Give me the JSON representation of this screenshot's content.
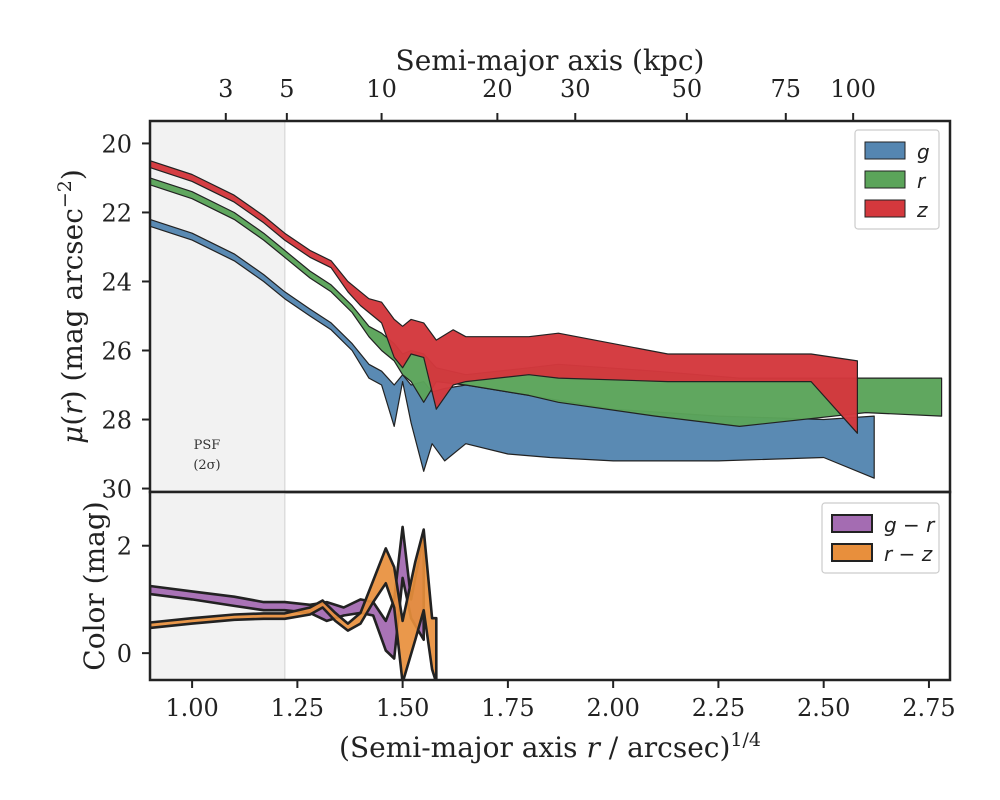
{
  "chart_data": [
    {
      "type": "area",
      "top_axis": {
        "label": "Semi-major axis (kpc)",
        "tick_labels": [
          "3",
          "5",
          "10",
          "20",
          "30",
          "50",
          "75",
          "100"
        ],
        "tick_r14": [
          1.08,
          1.225,
          1.45,
          1.725,
          1.91,
          2.175,
          2.41,
          2.57
        ]
      },
      "ylabel": "μ(r) (mag arcsec⁻²)",
      "ylim": [
        30.1,
        19.35
      ],
      "xlim": [
        0.9,
        2.8
      ],
      "yticks": [
        20,
        22,
        24,
        26,
        28,
        30
      ],
      "psf_label": [
        "PSF",
        "(2σ)"
      ],
      "psf_r14": 1.22,
      "legend_position": "upper right",
      "series": [
        {
          "name": "g",
          "color": "#5586b1",
          "x": [
            0.9,
            1.0,
            1.1,
            1.17,
            1.22,
            1.28,
            1.33,
            1.38,
            1.42,
            1.45,
            1.48,
            1.5,
            1.52,
            1.55,
            1.57,
            1.6,
            1.65,
            1.75,
            1.85,
            2.0,
            2.25,
            2.5,
            2.62
          ],
          "y_low": [
            22.2,
            22.6,
            23.2,
            23.8,
            24.3,
            24.8,
            25.2,
            25.8,
            26.4,
            26.6,
            27.0,
            26.7,
            27.0,
            26.9,
            27.2,
            27.1,
            27.0,
            27.2,
            27.4,
            27.7,
            27.9,
            28.0,
            27.9
          ],
          "y_high": [
            22.4,
            22.8,
            23.4,
            24.0,
            24.5,
            25.0,
            25.4,
            26.0,
            26.8,
            27.0,
            28.2,
            26.9,
            28.1,
            29.5,
            28.7,
            29.2,
            28.7,
            29.0,
            29.1,
            29.2,
            29.2,
            29.1,
            29.7
          ]
        },
        {
          "name": "r",
          "color": "#5ba45a",
          "x": [
            0.9,
            1.0,
            1.1,
            1.17,
            1.22,
            1.28,
            1.33,
            1.38,
            1.42,
            1.45,
            1.48,
            1.5,
            1.52,
            1.55,
            1.58,
            1.65,
            1.8,
            1.87,
            2.1,
            2.3,
            2.6,
            2.78
          ],
          "y_low": [
            21.0,
            21.4,
            22.0,
            22.6,
            23.1,
            23.7,
            24.1,
            24.7,
            25.3,
            25.5,
            25.8,
            26.1,
            26.0,
            26.1,
            26.5,
            26.7,
            26.5,
            26.4,
            26.6,
            26.8,
            26.8,
            26.8
          ],
          "y_high": [
            21.2,
            21.6,
            22.2,
            22.8,
            23.3,
            23.9,
            24.3,
            24.9,
            25.6,
            26.0,
            26.3,
            26.7,
            26.9,
            27.5,
            26.9,
            27.0,
            27.3,
            27.5,
            27.9,
            28.2,
            27.8,
            27.9
          ]
        },
        {
          "name": "z",
          "color": "#d4383d",
          "x": [
            0.9,
            1.0,
            1.1,
            1.17,
            1.22,
            1.28,
            1.33,
            1.37,
            1.4,
            1.42,
            1.45,
            1.48,
            1.5,
            1.52,
            1.55,
            1.58,
            1.62,
            1.65,
            1.8,
            1.87,
            2.13,
            2.47,
            2.58
          ],
          "y_low": [
            20.5,
            20.9,
            21.5,
            22.1,
            22.6,
            23.1,
            23.4,
            24.0,
            24.3,
            24.5,
            24.6,
            25.1,
            25.3,
            25.1,
            25.2,
            25.7,
            25.4,
            25.6,
            25.6,
            25.5,
            26.1,
            26.1,
            26.3
          ],
          "y_high": [
            20.7,
            21.1,
            21.7,
            22.3,
            22.8,
            23.3,
            23.6,
            24.3,
            24.7,
            24.9,
            25.2,
            26.2,
            26.5,
            26.1,
            26.2,
            27.7,
            27.0,
            26.9,
            26.7,
            26.8,
            26.9,
            26.9,
            28.4
          ]
        }
      ]
    },
    {
      "type": "area",
      "xlabel": "(Semi-major axis r / arcsec)^1/4",
      "ylabel": "Color (mag)",
      "xlim": [
        0.9,
        2.8
      ],
      "ylim": [
        -0.5,
        3.0
      ],
      "yticks": [
        0,
        2
      ],
      "xticks": [
        1.0,
        1.25,
        1.5,
        1.75,
        2.0,
        2.25,
        2.5,
        2.75
      ],
      "xtick_labels": [
        "1.00",
        "1.25",
        "1.50",
        "1.75",
        "2.00",
        "2.25",
        "2.50",
        "2.75"
      ],
      "legend_position": "upper right",
      "series": [
        {
          "name": "g − r",
          "color": "#a46cb2",
          "x": [
            0.9,
            1.0,
            1.1,
            1.17,
            1.22,
            1.28,
            1.32,
            1.36,
            1.4,
            1.43,
            1.46,
            1.48,
            1.5,
            1.52,
            1.55
          ],
          "y_low": [
            1.1,
            1.0,
            0.88,
            0.8,
            0.8,
            0.75,
            0.6,
            0.7,
            0.75,
            0.7,
            0.05,
            -0.1,
            1.4,
            0.65,
            0.25
          ],
          "y_high": [
            1.25,
            1.15,
            1.05,
            0.95,
            0.95,
            0.9,
            0.95,
            0.85,
            1.0,
            0.95,
            0.6,
            1.0,
            2.35,
            1.0,
            2.2
          ]
        },
        {
          "name": "r − z",
          "color": "#e88f3c",
          "x": [
            0.9,
            1.0,
            1.1,
            1.17,
            1.22,
            1.28,
            1.31,
            1.34,
            1.37,
            1.4,
            1.43,
            1.46,
            1.48,
            1.5,
            1.53,
            1.55,
            1.57,
            1.58
          ],
          "y_low": [
            0.47,
            0.55,
            0.62,
            0.64,
            0.64,
            0.72,
            0.85,
            0.6,
            0.42,
            0.55,
            0.95,
            1.3,
            0.85,
            -0.55,
            0.25,
            0.8,
            -0.3,
            -0.55
          ],
          "y_high": [
            0.57,
            0.65,
            0.72,
            0.74,
            0.74,
            0.85,
            0.98,
            0.75,
            0.55,
            0.75,
            1.35,
            1.95,
            1.6,
            0.6,
            1.7,
            2.3,
            0.65,
            0.65
          ]
        }
      ]
    }
  ]
}
